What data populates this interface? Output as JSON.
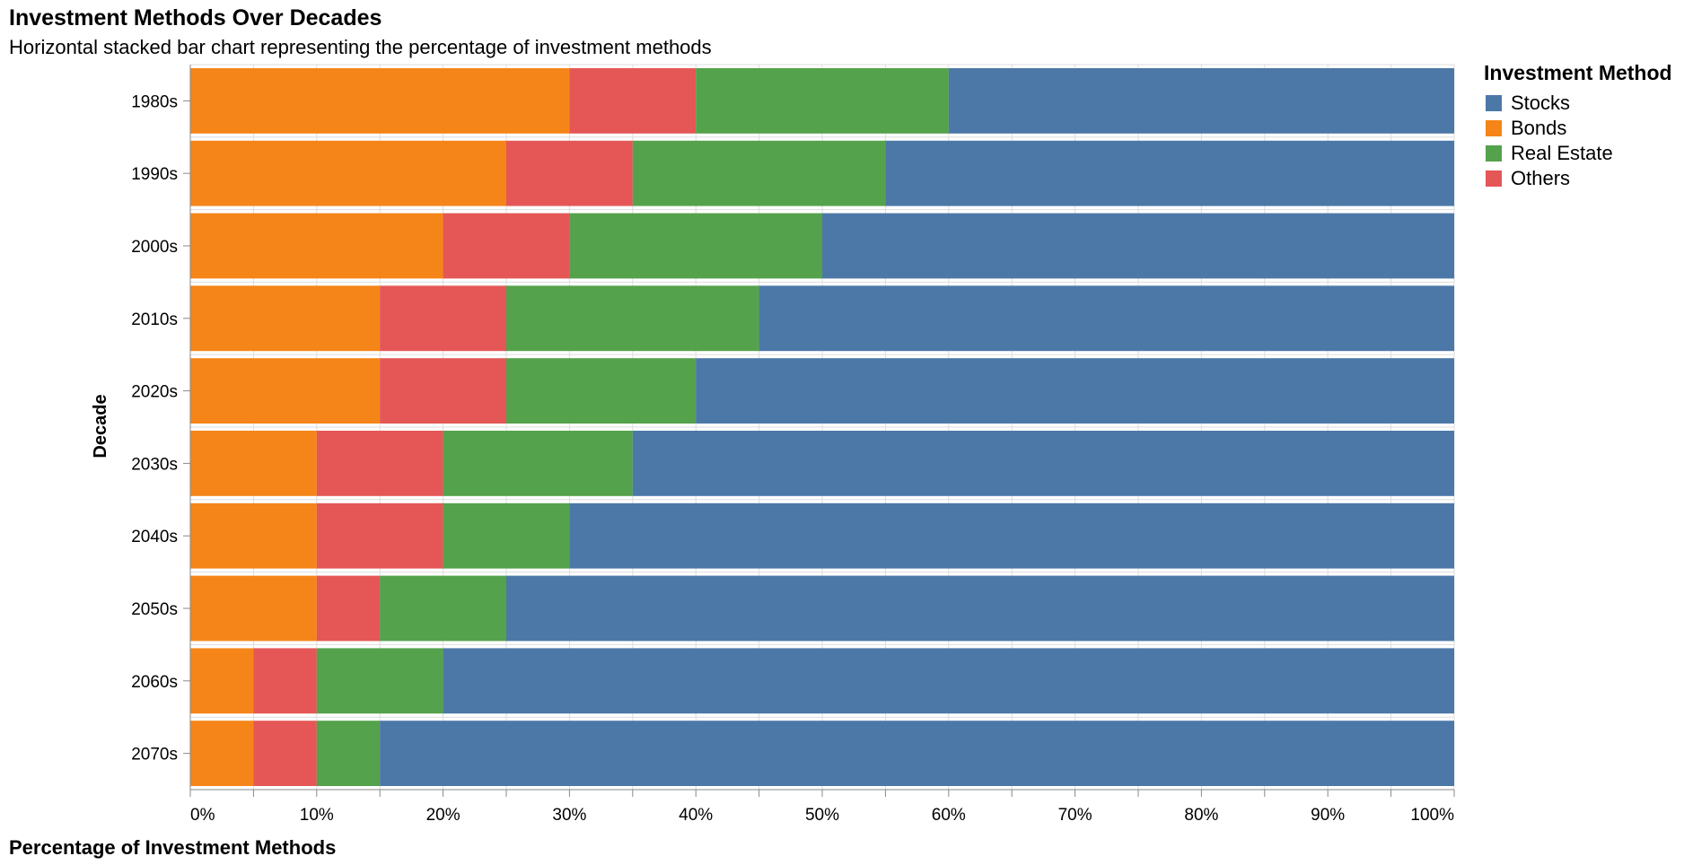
{
  "chart_data": {
    "type": "bar",
    "orientation": "horizontal",
    "stacked": true,
    "title": "Investment Methods Over Decades",
    "subtitle": "Horizontal stacked bar chart representing the percentage of investment methods",
    "xlabel": "Percentage of Investment Methods",
    "ylabel": "Decade",
    "xlim": [
      0,
      100
    ],
    "x_ticks": [
      "0%",
      "10%",
      "20%",
      "30%",
      "40%",
      "50%",
      "60%",
      "70%",
      "80%",
      "90%",
      "100%"
    ],
    "grid": true,
    "legend": {
      "title": "Investment Method",
      "placement": "top-right"
    },
    "categories": [
      "1980s",
      "1990s",
      "2000s",
      "2010s",
      "2020s",
      "2030s",
      "2040s",
      "2050s",
      "2060s",
      "2070s"
    ],
    "stack_order": [
      "Bonds",
      "Others",
      "Real Estate",
      "Stocks"
    ],
    "series": [
      {
        "name": "Stocks",
        "color": "#4c78a8",
        "values": [
          40,
          45,
          50,
          55,
          60,
          65,
          70,
          75,
          80,
          85
        ]
      },
      {
        "name": "Bonds",
        "color": "#f58518",
        "values": [
          30,
          25,
          20,
          15,
          15,
          10,
          10,
          10,
          5,
          5
        ]
      },
      {
        "name": "Real Estate",
        "color": "#54a24b",
        "values": [
          20,
          20,
          20,
          20,
          15,
          15,
          10,
          10,
          10,
          5
        ]
      },
      {
        "name": "Others",
        "color": "#e45756",
        "values": [
          10,
          10,
          10,
          10,
          10,
          10,
          10,
          5,
          5,
          5
        ]
      }
    ]
  }
}
